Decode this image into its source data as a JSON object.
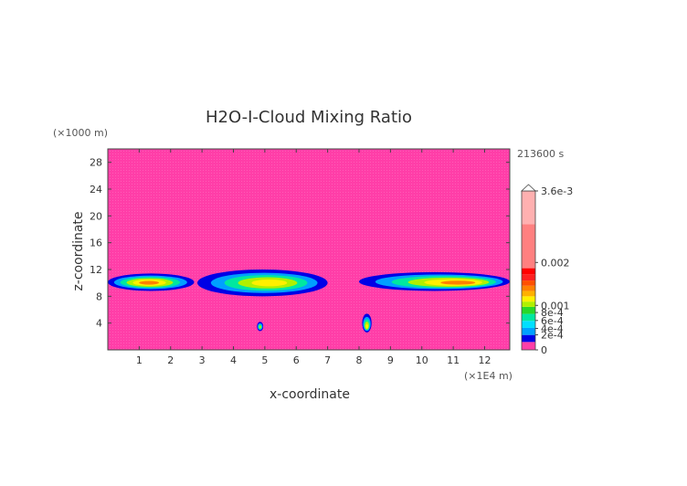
{
  "chart_data": {
    "type": "heatmap",
    "title": "H2O-I-Cloud Mixing Ratio",
    "xlabel": "x-coordinate",
    "ylabel": "z-coordinate",
    "x_unit": "(×1E4 m)",
    "y_unit": "(×1000 m)",
    "time_label": "213600 s",
    "xlim": [
      0,
      12.8
    ],
    "ylim": [
      0,
      30
    ],
    "x_ticks": [
      "1",
      "2",
      "3",
      "4",
      "5",
      "6",
      "7",
      "8",
      "9",
      "10",
      "11",
      "12"
    ],
    "y_ticks": [
      "4",
      "8",
      "12",
      "16",
      "20",
      "24",
      "28"
    ],
    "background_value": 0,
    "colorbar": {
      "labels": [
        "3.6e-3",
        "0.002",
        "0.001",
        "8e-4",
        "6e-4",
        "4e-4",
        "2e-4",
        "0"
      ],
      "colors": [
        "#ff3ea8",
        "#0000e6",
        "#00a0ff",
        "#00e0ff",
        "#00e8a0",
        "#28d828",
        "#b0f000",
        "#fff000",
        "#ffb000",
        "#ff8000",
        "#ff5000",
        "#ff2020",
        "#ff0000",
        "#ff8080",
        "#ffb0b0",
        "#ffd0d0"
      ],
      "extend_max": true
    },
    "features": [
      {
        "x_range": [
          0,
          2.75
        ],
        "z_range": [
          8.8,
          11.4
        ],
        "center": [
          1.3,
          10.0
        ],
        "peak_value": 0.0009
      },
      {
        "x_range": [
          2.85,
          7.0
        ],
        "z_range": [
          8.0,
          12.0
        ],
        "center": [
          5.2,
          10.0
        ],
        "peak_value": 0.0008
      },
      {
        "x_range": [
          8.0,
          12.8
        ],
        "z_range": [
          8.8,
          11.6
        ],
        "center": [
          11.3,
          10.0
        ],
        "peak_value": 0.0009
      },
      {
        "x_range": [
          4.75,
          4.95
        ],
        "z_range": [
          2.8,
          4.2
        ],
        "center": [
          4.85,
          3.4
        ],
        "peak_value": 0.0007
      },
      {
        "x_range": [
          8.1,
          8.4
        ],
        "z_range": [
          2.6,
          5.4
        ],
        "center": [
          8.25,
          3.4
        ],
        "peak_value": 0.0008
      }
    ]
  }
}
